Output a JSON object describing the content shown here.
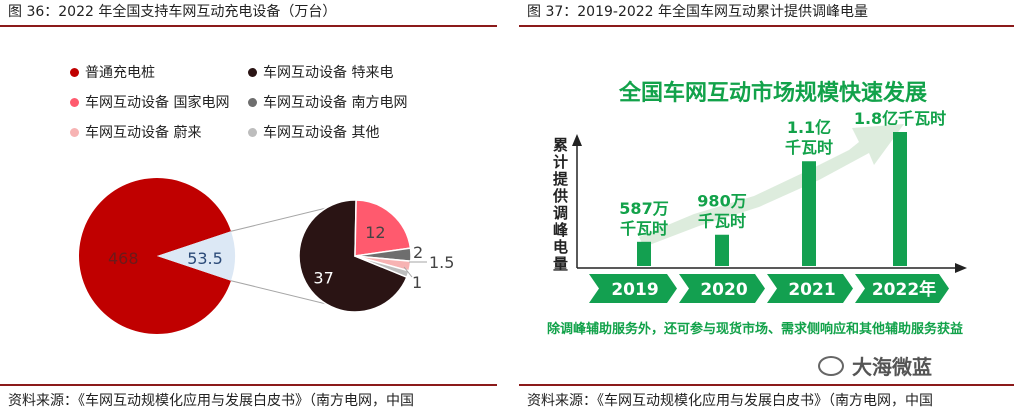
{
  "left_panel": {
    "title": "图 36：2022 年全国支持车网互动充电设备（万台）",
    "source": "资料来源：《车网互动规模化应用与发展白皮书》（南方电网，中国",
    "legend": [
      {
        "label": "普通充电桩",
        "color": "#c00000"
      },
      {
        "label": "车网互动设备 特来电",
        "color": "#2a1414"
      },
      {
        "label": "车网互动设备 国家电网",
        "color": "#ff5a6e"
      },
      {
        "label": "车网互动设备 南方电网",
        "color": "#6e6e6e"
      },
      {
        "label": "车网互动设备 蔚来",
        "color": "#f7b3b3"
      },
      {
        "label": "车网互动设备 其他",
        "color": "#bdbdbd"
      }
    ]
  },
  "right_panel": {
    "title": "图 37：2019-2022 年全国车网互动累计提供调峰电量",
    "headline": "全国车网互动市场规模快速发展",
    "ylabel": "累计提供调峰电量",
    "footnote": "除调峰辅助服务外，还可参与现货市场、需求侧响应和其他辅助服务获益",
    "source": "资料来源：《车网互动规模化应用与发展白皮书》（南方电网，中国",
    "watermark": "大海微蓝"
  },
  "chart_data": [
    {
      "type": "pie",
      "title": "图 36：2022 年全国支持车网互动充电设备（万台）",
      "slices": [
        {
          "label": "普通充电桩",
          "value": 468
        },
        {
          "label": "车网互动设备",
          "value": 53.5
        }
      ],
      "breakdown_of": "车网互动设备",
      "breakdown": [
        {
          "label": "车网互动设备 特来电",
          "value": 37
        },
        {
          "label": "车网互动设备 国家电网",
          "value": 12
        },
        {
          "label": "车网互动设备 南方电网",
          "value": 2
        },
        {
          "label": "车网互动设备 蔚来",
          "value": 1.5
        },
        {
          "label": "车网互动设备 其他",
          "value": 1
        }
      ],
      "legend_position": "top"
    },
    {
      "type": "bar",
      "title": "全国车网互动市场规模快速发展",
      "categories": [
        "2019",
        "2020",
        "2021",
        "2022年"
      ],
      "values": [
        587,
        980,
        11000,
        18000
      ],
      "unit": "万千瓦时",
      "value_labels": [
        "587万\n千瓦时",
        "980万\n千瓦时",
        "1.1亿\n千瓦时",
        "1.8亿千瓦时"
      ],
      "ylabel": "累计提供调峰电量"
    }
  ]
}
